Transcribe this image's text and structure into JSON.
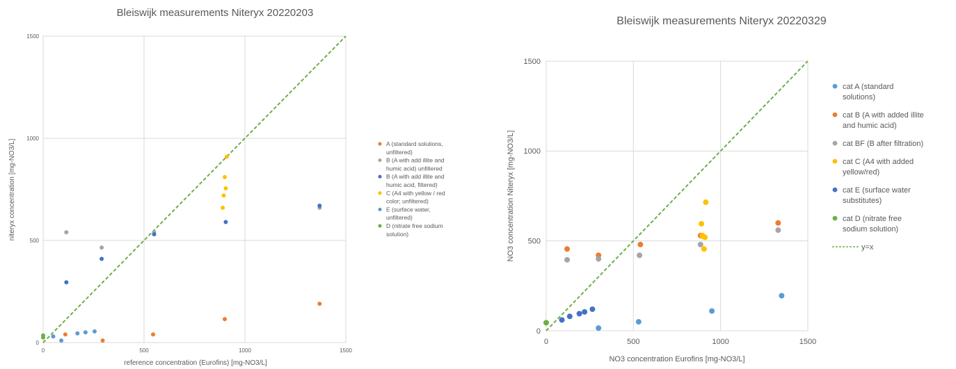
{
  "chart_data": [
    {
      "type": "scatter",
      "title": "Bleiswijk measurements Niteryx  20220203",
      "xlabel": "reference concentration (Eurofins) [mg-NO3/L]",
      "ylabel": "niteryx concentration [mg-NO3/L]",
      "xlim": [
        0,
        1500
      ],
      "ylim": [
        0,
        1500
      ],
      "xticks": [
        "0",
        "500",
        "1000",
        "1500"
      ],
      "yticks": [
        "0",
        "500",
        "1000",
        "1500"
      ],
      "grid": true,
      "legend_position": "right",
      "series": [
        {
          "name": "A (standard solutions, unfiltered)",
          "legend_lines": [
            "A (standard solutions,",
            "unfiltered)"
          ],
          "color": "#ED7D31",
          "x": [
            110,
            295,
            545,
            900,
            1370
          ],
          "y": [
            40,
            10,
            40,
            115,
            190
          ]
        },
        {
          "name": "B (A with add illite and humic acid) unfiltered",
          "legend_lines": [
            "B (A with add illite and",
            "humic acid) unfiltered"
          ],
          "color": "#A5A5A5",
          "x": [
            115,
            290,
            550,
            1370
          ],
          "y": [
            540,
            465,
            540,
            660
          ]
        },
        {
          "name": "B (A with add illite and humic acid, filtered)",
          "legend_lines": [
            "B (A with add illite and",
            "humic acid, filtered)"
          ],
          "color": "#4472C4",
          "x": [
            115,
            290,
            550,
            905,
            1370
          ],
          "y": [
            295,
            410,
            530,
            590,
            670
          ]
        },
        {
          "name": "C (A4 with yellow / red color; unfiltered)",
          "legend_lines": [
            "C (A4 with yellow / red",
            "color; unfiltered)"
          ],
          "color": "#FFC000",
          "x": [
            890,
            895,
            900,
            905,
            910
          ],
          "y": [
            660,
            720,
            810,
            755,
            910
          ]
        },
        {
          "name": "E (surface water, unfiltered)",
          "legend_lines": [
            "E (surface water,",
            "unfiltered)"
          ],
          "color": "#5B9BD5",
          "x": [
            50,
            90,
            170,
            210,
            255
          ],
          "y": [
            30,
            10,
            45,
            50,
            55
          ]
        },
        {
          "name": "D (nitrate free sodium solution)",
          "legend_lines": [
            "D (nitrate free sodium",
            "solution)"
          ],
          "color": "#70AD47",
          "x": [
            0,
            0
          ],
          "y": [
            35,
            25
          ]
        }
      ],
      "reference_line": {
        "x": [
          0,
          1500
        ],
        "y": [
          0,
          1500
        ],
        "color": "#70AD47",
        "style": "dashed"
      }
    },
    {
      "type": "scatter",
      "title": "Bleiswijk measurements Niteryx  20220329",
      "xlabel": "NO3 concentration Eurofins [mg-NO3/L]",
      "ylabel": "NO3 concentration Niteryx [mg-NO3/L]",
      "xlim": [
        0,
        1500
      ],
      "ylim": [
        0,
        1500
      ],
      "xticks": [
        "0",
        "500",
        "1000",
        "1500"
      ],
      "yticks": [
        "0",
        "500",
        "1000",
        "1500"
      ],
      "grid": true,
      "legend_position": "right",
      "series": [
        {
          "name": "cat A (standard solutions)",
          "legend_lines": [
            "cat A (standard",
            "solutions)"
          ],
          "color": "#5B9BD5",
          "x": [
            300,
            530,
            950,
            1350
          ],
          "y": [
            15,
            50,
            110,
            195
          ]
        },
        {
          "name": "cat B (A with added illite and humic acid)",
          "legend_lines": [
            "cat B (A with added illite",
            "and humic acid)"
          ],
          "color": "#ED7D31",
          "x": [
            120,
            300,
            540,
            885,
            1330
          ],
          "y": [
            455,
            420,
            480,
            530,
            600
          ]
        },
        {
          "name": "cat BF (B after filtration)",
          "legend_lines": [
            "cat BF (B after filtration)"
          ],
          "color": "#A5A5A5",
          "x": [
            120,
            300,
            535,
            885,
            1330
          ],
          "y": [
            395,
            400,
            420,
            480,
            560
          ]
        },
        {
          "name": "cat C (A4 with added yellow/red)",
          "legend_lines": [
            "cat C (A4 with added",
            "yellow/red)"
          ],
          "color": "#FFC000",
          "x": [
            890,
            895,
            900,
            905,
            910,
            915
          ],
          "y": [
            595,
            530,
            525,
            455,
            520,
            715
          ]
        },
        {
          "name": "cat E (surface water substitutes)",
          "legend_lines": [
            "cat E (surface water",
            "substitutes)"
          ],
          "color": "#4472C4",
          "x": [
            90,
            135,
            190,
            220,
            265
          ],
          "y": [
            60,
            80,
            95,
            105,
            120
          ]
        },
        {
          "name": "cat D (nitrate free sodium solution)",
          "legend_lines": [
            "cat D (nitrate free",
            "sodium solution)"
          ],
          "color": "#70AD47",
          "x": [
            0
          ],
          "y": [
            45
          ]
        }
      ],
      "reference_line": {
        "name": "y=x",
        "x": [
          0,
          1500
        ],
        "y": [
          0,
          1500
        ],
        "color": "#70AD47",
        "style": "dashed"
      }
    }
  ]
}
